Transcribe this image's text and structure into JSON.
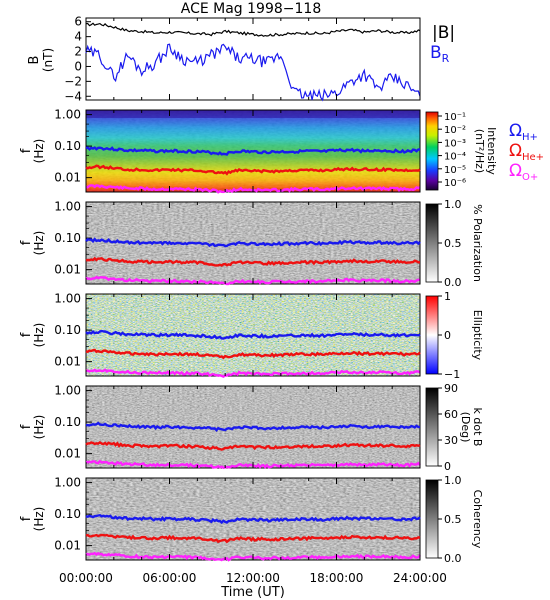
{
  "figure": {
    "title": "ACE Mag 1998−118",
    "xlabel": "Time (UT)",
    "xticks": [
      "00:00:00",
      "06:00:00",
      "12:00:00",
      "18:00:00",
      "24:00:00"
    ]
  },
  "legend": {
    "b_total": "|B|",
    "b_radial": "B",
    "b_radial_sub": "R",
    "omega": "Ω",
    "h_plus": "H+",
    "he_plus": "He+",
    "o_plus": "O+"
  },
  "colors": {
    "b_total": "#000000",
    "b_radial": "#1a1aee",
    "h_plus": "#1a1aee",
    "he_plus": "#ee1111",
    "o_plus": "#ff22ff"
  },
  "chart_data": [
    {
      "type": "line",
      "panel": "magnetic-field",
      "ylabel": "B",
      "yunit": "(nT)",
      "ylim": [
        -4.5,
        6.5
      ],
      "yticks": [
        "6",
        "4",
        "2",
        "0",
        "−2",
        "−4"
      ],
      "xlim_hours": [
        0,
        24
      ],
      "series": [
        {
          "name": "|B|",
          "x": [
            0,
            1,
            2,
            3,
            4,
            5,
            6,
            7,
            8,
            9,
            10,
            11,
            12,
            13,
            14,
            15,
            16,
            17,
            18,
            19,
            20,
            21,
            22,
            23,
            24
          ],
          "values": [
            5.6,
            5.7,
            5.3,
            4.8,
            4.7,
            4.5,
            4.6,
            4.5,
            4.4,
            4.3,
            4.7,
            4.5,
            4.3,
            4.2,
            4.3,
            4.4,
            4.5,
            4.4,
            4.7,
            4.9,
            4.6,
            4.8,
            4.6,
            4.5,
            4.8
          ]
        },
        {
          "name": "BR",
          "x": [
            0,
            1,
            2,
            3,
            4,
            5,
            6,
            7,
            8,
            9,
            10,
            11,
            12,
            13,
            14,
            15,
            16,
            17,
            18,
            19,
            20,
            21,
            22,
            23,
            24
          ],
          "values": [
            2.0,
            1.5,
            -1.5,
            1.5,
            -0.5,
            0.5,
            2.5,
            1.0,
            0.5,
            1.5,
            2.5,
            1.0,
            1.0,
            0.5,
            1.5,
            -3.5,
            -4.0,
            -4.0,
            -3.5,
            -2.0,
            -1.0,
            -3.0,
            -1.5,
            -2.5,
            -4.0
          ]
        }
      ]
    },
    {
      "type": "heatmap",
      "panel": "intensity",
      "ylabel": "f",
      "yunit": "(Hz)",
      "yticks": [
        "1.00",
        "0.10",
        "0.01"
      ],
      "colorbar_label": "Intensity",
      "colorbar_unit": "(nT²/Hz)",
      "colorbar_ticks": [
        "10⁻¹",
        "10⁻²",
        "10⁻³",
        "10⁻⁴",
        "10⁻⁵",
        "10⁻⁶"
      ],
      "colorscale": "rainbow"
    },
    {
      "type": "heatmap",
      "panel": "polarization",
      "ylabel": "f",
      "yunit": "(Hz)",
      "yticks": [
        "1.00",
        "0.10",
        "0.01"
      ],
      "colorbar_label": "% Polarization",
      "colorbar_ticks": [
        "1.0",
        "0.5",
        "0.0"
      ],
      "colorscale": "gray"
    },
    {
      "type": "heatmap",
      "panel": "ellipticity",
      "ylabel": "f",
      "yunit": "(Hz)",
      "yticks": [
        "1.00",
        "0.10",
        "0.01"
      ],
      "colorbar_label": "Ellipticity",
      "colorbar_ticks": [
        "1",
        "0",
        "−1"
      ],
      "colorscale": "bluewhitered"
    },
    {
      "type": "heatmap",
      "panel": "k-dot-b",
      "ylabel": "f",
      "yunit": "(Hz)",
      "yticks": [
        "1.00",
        "0.10",
        "0.01"
      ],
      "colorbar_label": "k dot B",
      "colorbar_unit": "(Deg)",
      "colorbar_ticks": [
        "90",
        "60",
        "30",
        "0"
      ],
      "colorscale": "gray"
    },
    {
      "type": "heatmap",
      "panel": "coherency",
      "ylabel": "f",
      "yunit": "(Hz)",
      "yticks": [
        "1.00",
        "0.10",
        "0.01"
      ],
      "colorbar_label": "Coherency",
      "colorbar_ticks": [
        "1.0",
        "0.5",
        "0.0"
      ],
      "colorscale": "gray"
    }
  ],
  "gyrofrequency_hz": {
    "x": [
      0,
      1,
      2,
      3,
      4,
      5,
      6,
      7,
      8,
      9,
      10,
      11,
      12,
      13,
      14,
      15,
      16,
      17,
      18,
      19,
      20,
      21,
      22,
      23,
      24
    ],
    "h_plus": [
      0.085,
      0.087,
      0.08,
      0.073,
      0.072,
      0.069,
      0.07,
      0.069,
      0.067,
      0.062,
      0.057,
      0.069,
      0.066,
      0.064,
      0.066,
      0.067,
      0.069,
      0.067,
      0.072,
      0.075,
      0.07,
      0.073,
      0.07,
      0.069,
      0.073
    ],
    "he_plus": [
      0.021,
      0.022,
      0.02,
      0.018,
      0.018,
      0.017,
      0.018,
      0.017,
      0.017,
      0.015,
      0.014,
      0.017,
      0.016,
      0.016,
      0.016,
      0.017,
      0.017,
      0.017,
      0.018,
      0.019,
      0.018,
      0.018,
      0.018,
      0.017,
      0.018
    ],
    "o_plus": [
      0.0053,
      0.0054,
      0.005,
      0.0046,
      0.0045,
      0.0043,
      0.0044,
      0.0043,
      0.0042,
      0.0039,
      0.0036,
      0.0043,
      0.0041,
      0.004,
      0.0041,
      0.0042,
      0.0043,
      0.0042,
      0.0045,
      0.0047,
      0.0044,
      0.0046,
      0.0044,
      0.0043,
      0.0046
    ]
  }
}
